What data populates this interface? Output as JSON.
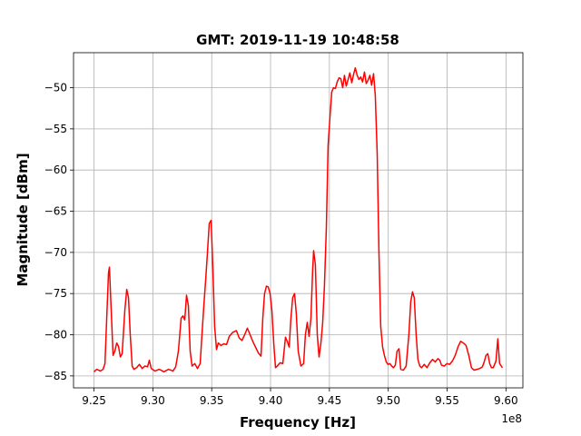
{
  "chart_data": {
    "type": "line",
    "title": "GMT: 2019-11-19 10:48:58",
    "x_label": "Frequency [Hz]",
    "y_label": "Magnitude [dBm]",
    "x_offset_label": "1e8",
    "color": "#ff0000",
    "grid": true,
    "xlim": [
      9.2326,
      9.6144
    ],
    "ylim": [
      -86.45,
      -45.75
    ],
    "xticks": [
      9.25,
      {
        "value": 9.3,
        "label": "9.30"
      },
      9.35,
      {
        "value": 9.4,
        "label": "9.40"
      },
      9.45,
      {
        "value": 9.5,
        "label": "9.50"
      },
      9.55,
      {
        "value": 9.6,
        "label": "9.60"
      }
    ],
    "yticks": [
      {
        "value": -85,
        "label": "−85"
      },
      {
        "value": -80,
        "label": "−80"
      },
      {
        "value": -75,
        "label": "−75"
      },
      {
        "value": -70,
        "label": "−70"
      },
      {
        "value": -65,
        "label": "−65"
      },
      {
        "value": -60,
        "label": "−60"
      },
      {
        "value": -55,
        "label": "−55"
      },
      {
        "value": -50,
        "label": "−50"
      }
    ],
    "x": [
      9.25,
      9.2523,
      9.2554,
      9.2577,
      9.2593,
      9.2608,
      9.2623,
      9.2631,
      9.2646,
      9.2662,
      9.2677,
      9.2693,
      9.2708,
      9.2724,
      9.2739,
      9.2762,
      9.2778,
      9.2793,
      9.2808,
      9.2824,
      9.2839,
      9.2862,
      9.2886,
      9.2909,
      9.2932,
      9.2955,
      9.297,
      9.2986,
      9.3017,
      9.3055,
      9.3094,
      9.3132,
      9.3171,
      9.3194,
      9.3217,
      9.324,
      9.3256,
      9.3271,
      9.3286,
      9.3302,
      9.3317,
      9.3333,
      9.3356,
      9.3379,
      9.3402,
      9.3417,
      9.3433,
      9.3448,
      9.3464,
      9.3479,
      9.3495,
      9.351,
      9.3525,
      9.3541,
      9.3556,
      9.3579,
      9.3603,
      9.3626,
      9.3649,
      9.368,
      9.371,
      9.3734,
      9.3757,
      9.378,
      9.3803,
      9.3826,
      9.3849,
      9.3872,
      9.3896,
      9.3919,
      9.3934,
      9.3949,
      9.3965,
      9.398,
      9.3996,
      9.4011,
      9.4027,
      9.4042,
      9.4057,
      9.4081,
      9.4104,
      9.4127,
      9.4142,
      9.4158,
      9.4173,
      9.4188,
      9.4204,
      9.4219,
      9.4235,
      9.4258,
      9.4281,
      9.4296,
      9.4312,
      9.4327,
      9.4343,
      9.4358,
      9.4366,
      9.4381,
      9.4397,
      9.4412,
      9.4428,
      9.4443,
      9.4458,
      9.4474,
      9.4489,
      9.4505,
      9.452,
      9.4535,
      9.4551,
      9.4566,
      9.4582,
      9.4597,
      9.4613,
      9.4628,
      9.4643,
      9.4659,
      9.4674,
      9.469,
      9.4705,
      9.472,
      9.4736,
      9.4751,
      9.4767,
      9.4782,
      9.4798,
      9.4813,
      9.4828,
      9.4844,
      9.4859,
      9.4875,
      9.489,
      9.4906,
      9.4921,
      9.4936,
      9.4952,
      9.4967,
      9.4983,
      9.4998,
      9.5013,
      9.5029,
      9.5044,
      9.506,
      9.5075,
      9.5091,
      9.5106,
      9.5129,
      9.5152,
      9.5175,
      9.5191,
      9.5206,
      9.5221,
      9.5237,
      9.5252,
      9.5268,
      9.5283,
      9.5306,
      9.5329,
      9.5353,
      9.5376,
      9.5399,
      9.5422,
      9.5438,
      9.5453,
      9.5476,
      9.5499,
      9.5522,
      9.5545,
      9.5569,
      9.5592,
      9.5615,
      9.5638,
      9.5661,
      9.5684,
      9.5707,
      9.573,
      9.5754,
      9.5777,
      9.58,
      9.5815,
      9.5831,
      9.5846,
      9.5862,
      9.5877,
      9.5892,
      9.5915,
      9.5931,
      9.5946,
      9.597
    ],
    "values": [
      -84.5,
      -84.2,
      -84.4,
      -84.2,
      -83.5,
      -78,
      -72.5,
      -71.8,
      -77,
      -82.5,
      -82,
      -81,
      -81.4,
      -82.7,
      -82.3,
      -77,
      -74.5,
      -75.5,
      -80,
      -83.8,
      -84.2,
      -84,
      -83.6,
      -84.1,
      -83.8,
      -83.9,
      -83.1,
      -84.1,
      -84.4,
      -84.2,
      -84.5,
      -84.2,
      -84.4,
      -83.9,
      -82,
      -78,
      -77.7,
      -78.2,
      -75.2,
      -76.5,
      -82,
      -83.8,
      -83.5,
      -84.1,
      -83.5,
      -80,
      -76.5,
      -73.5,
      -70,
      -66.5,
      -66.1,
      -72,
      -79,
      -81.8,
      -81,
      -81.3,
      -81.1,
      -81.2,
      -80.2,
      -79.7,
      -79.5,
      -80.4,
      -80.7,
      -80,
      -79.2,
      -80,
      -80.8,
      -81.5,
      -82.2,
      -82.6,
      -78,
      -75,
      -74.1,
      -74.2,
      -75,
      -77,
      -81,
      -84,
      -83.8,
      -83.4,
      -83.5,
      -80.3,
      -80.8,
      -81.5,
      -78,
      -75.5,
      -75,
      -77.5,
      -82,
      -83.8,
      -83.5,
      -80,
      -78.5,
      -80.2,
      -78,
      -72,
      -69.8,
      -71.5,
      -80,
      -82.7,
      -81,
      -78.5,
      -74,
      -67,
      -57,
      -53.5,
      -50.5,
      -50,
      -50.1,
      -49.3,
      -48.8,
      -48.9,
      -50,
      -48.5,
      -49.8,
      -49,
      -48.2,
      -49.4,
      -48.4,
      -47.6,
      -48.5,
      -49,
      -48.7,
      -49.3,
      -48.1,
      -49.5,
      -49.1,
      -48.5,
      -49.7,
      -48.3,
      -51,
      -58,
      -70,
      -79,
      -81.5,
      -82.5,
      -83.3,
      -83.6,
      -83.5,
      -83.8,
      -84,
      -83.7,
      -82,
      -81.7,
      -84.2,
      -84.3,
      -83.8,
      -80,
      -76,
      -74.8,
      -75.5,
      -80,
      -83,
      -83.8,
      -84,
      -83.6,
      -84,
      -83.4,
      -83,
      -83.3,
      -82.9,
      -83.1,
      -83.7,
      -83.8,
      -83.5,
      -83.6,
      -83.2,
      -82.5,
      -81.5,
      -80.8,
      -81,
      -81.3,
      -82.5,
      -84,
      -84.3,
      -84.2,
      -84.1,
      -83.9,
      -83.3,
      -82.5,
      -82.3,
      -83.5,
      -84,
      -84,
      -83.2,
      -80.5,
      -83.5,
      -84
    ]
  }
}
